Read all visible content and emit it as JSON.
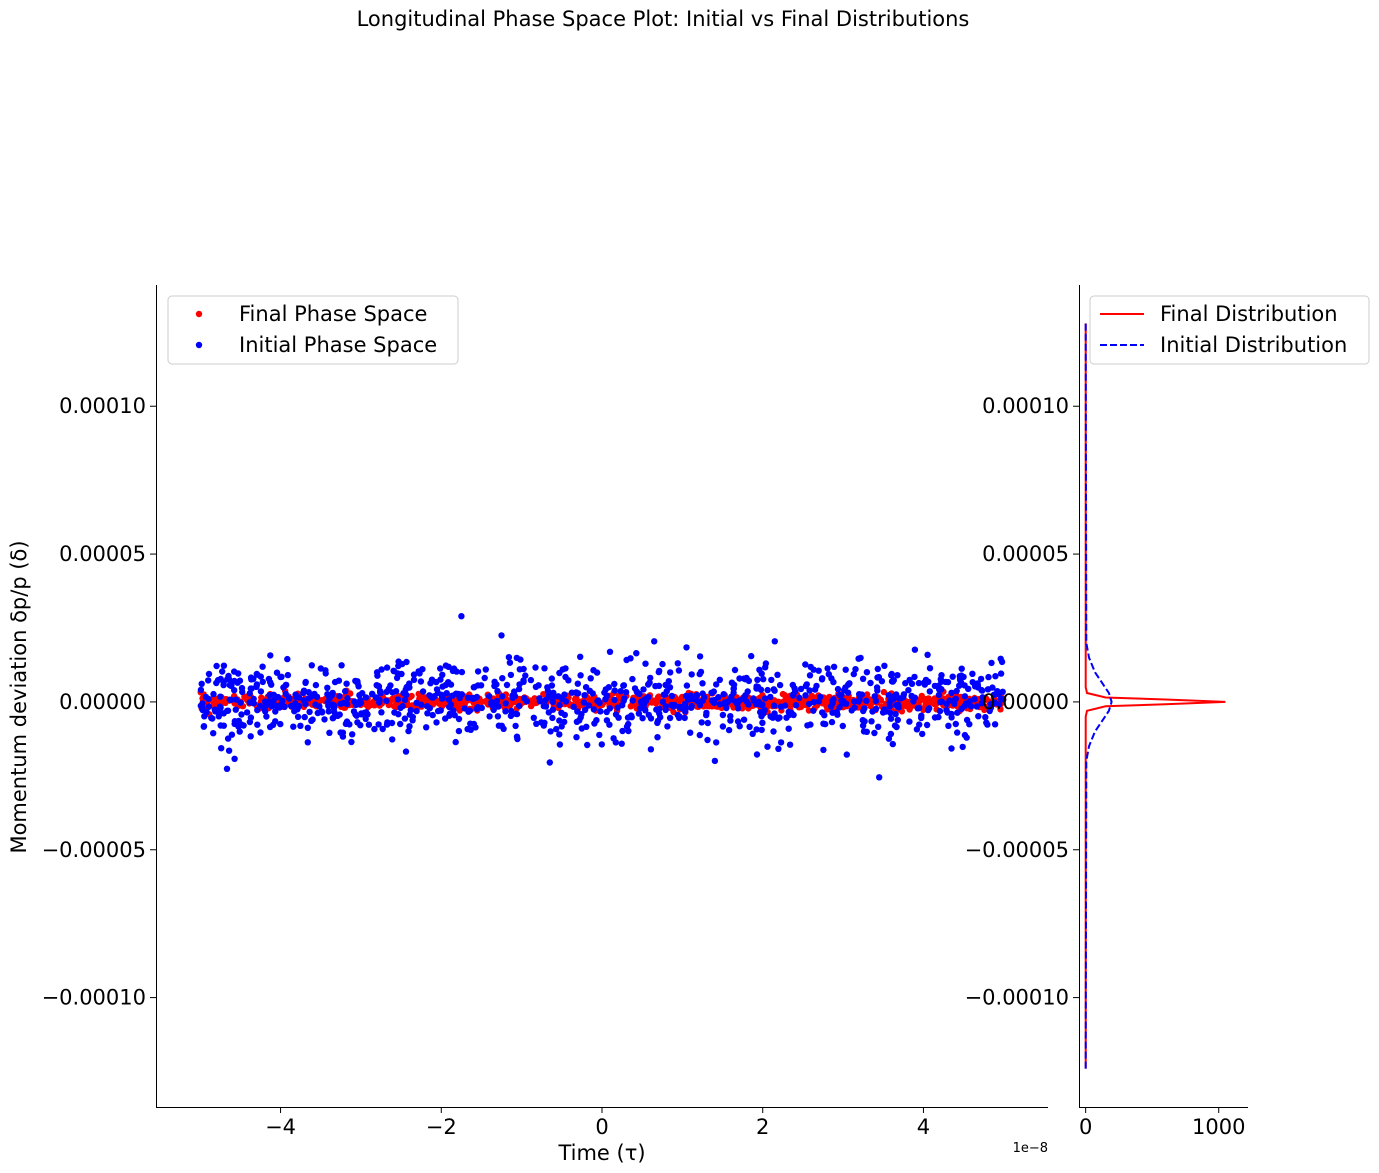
{
  "figure": {
    "suptitle": "Longitudinal Phase Space Plot: Initial vs Final Distributions"
  },
  "chart_data": [
    {
      "type": "scatter",
      "xlabel": "Time (τ)",
      "ylabel": "Momentum deviation δp/p (δ)",
      "x_offset_text": "1e−8",
      "xlim": [
        -5.55e-08,
        5.55e-08
      ],
      "ylim": [
        -0.000137,
        0.000141
      ],
      "x_ticks": [
        -4e-08,
        -2e-08,
        0,
        2e-08,
        4e-08
      ],
      "x_tick_labels": [
        "−4",
        "−2",
        "0",
        "2",
        "4"
      ],
      "y_ticks": [
        0.0001,
        5e-05,
        0,
        -5e-05,
        -0.0001
      ],
      "y_tick_labels": [
        "0.00010",
        "0.00005",
        "0.00000",
        "−0.00005",
        "−0.00010"
      ],
      "grid": false,
      "legend_position": "upper left",
      "colors": {
        "final": "#ff0000",
        "initial": "#0000ff"
      },
      "series": [
        {
          "name": "Final Phase Space",
          "color": "#ff0000",
          "x_range": [
            -5e-08,
            5e-08
          ],
          "y_std": 1.2e-06,
          "n_points": 1000
        },
        {
          "name": "Initial Phase Space",
          "color": "#0000ff",
          "x_range": [
            -5e-08,
            5e-08
          ],
          "y_std": 6.8e-06,
          "n_points": 1000,
          "notable_points": [
            {
              "x": -1.75e-08,
              "y": 2.9e-05
            },
            {
              "x": -1.25e-08,
              "y": 2.25e-05
            },
            {
              "x": 6.5e-09,
              "y": 2.05e-05
            },
            {
              "x": 2.15e-08,
              "y": 2.05e-05
            },
            {
              "x": 3.45e-08,
              "y": -2.55e-05
            },
            {
              "x": -6.5e-09,
              "y": -2.05e-05
            }
          ]
        }
      ]
    },
    {
      "type": "line",
      "x_ticks": [
        0,
        1000
      ],
      "x_tick_labels": [
        "0",
        "1000"
      ],
      "xlim": [
        -50,
        1220
      ],
      "ylim": [
        -0.000137,
        0.000141
      ],
      "y_ticks": [
        0.0001,
        5e-05,
        0,
        -5e-05,
        -0.0001
      ],
      "y_tick_labels": [
        "0.00010",
        "0.00005",
        "0.00000",
        "−0.00005",
        "−0.00010"
      ],
      "legend_position": "upper left",
      "y_range": [
        -0.000124,
        0.000128
      ],
      "series": [
        {
          "name": "Final Distribution",
          "color": "#ff0000",
          "linestyle": "solid",
          "y": [
            -0.000124,
            -5e-06,
            -3e-06,
            -1.5e-06,
            -8e-07,
            0.0,
            8e-07,
            1.5e-06,
            3e-06,
            5e-06,
            0.000128
          ],
          "x": [
            0,
            0,
            10,
            150,
            600,
            1050,
            600,
            150,
            10,
            0,
            0
          ]
        },
        {
          "name": "Initial Distribution",
          "color": "#0000ff",
          "linestyle": "dashed",
          "y": [
            -0.000124,
            -2e-05,
            -1.5e-05,
            -1e-05,
            -6e-06,
            -3e-06,
            0.0,
            3e-06,
            6e-06,
            1e-05,
            1.5e-05,
            2e-05,
            0.000128
          ],
          "x": [
            0,
            5,
            25,
            70,
            130,
            175,
            195,
            175,
            130,
            70,
            25,
            5,
            0
          ]
        }
      ]
    }
  ]
}
